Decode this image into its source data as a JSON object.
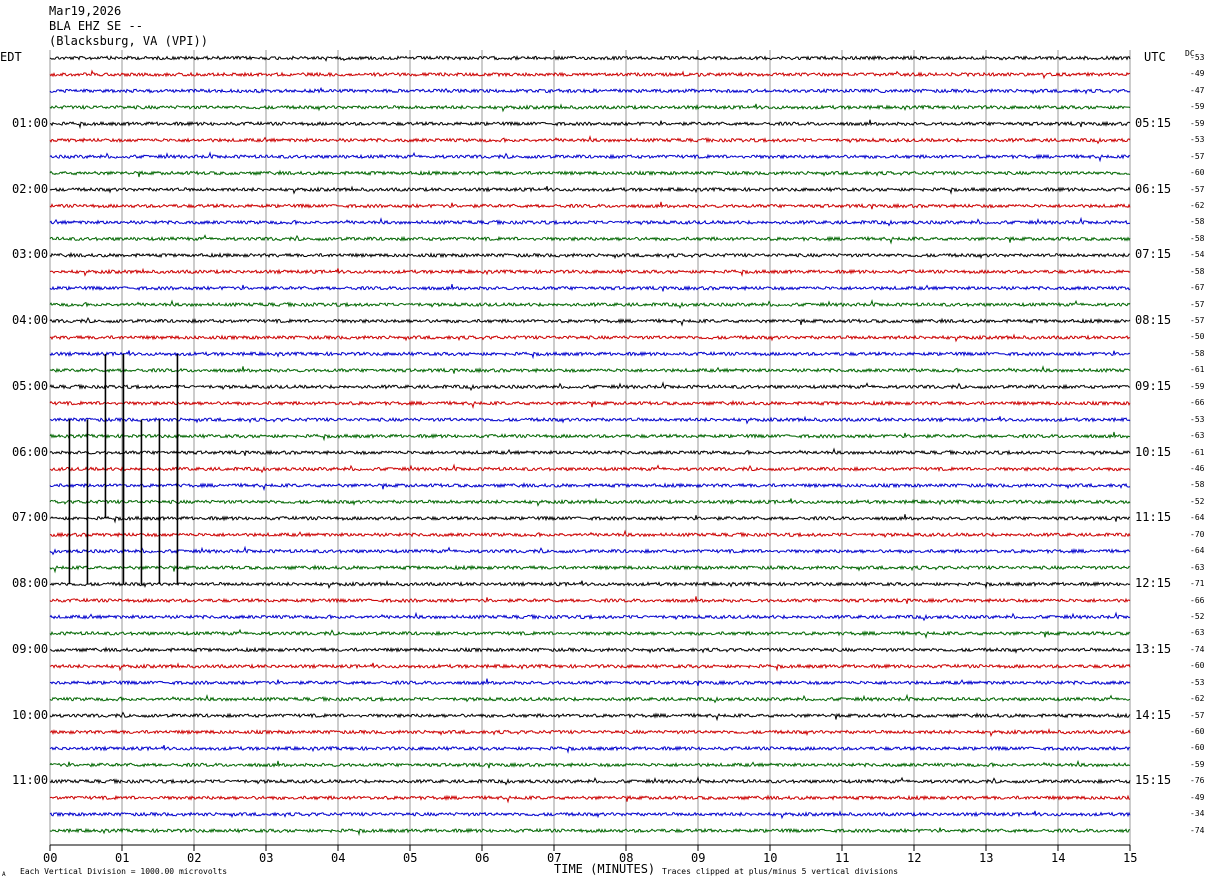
{
  "header": {
    "date": "Mar19,2026",
    "station": "BLA EHZ SE --",
    "location": "(Blacksburg, VA (VPI))"
  },
  "left_tz": "EDT",
  "right_tz": "UTC",
  "dc_label": "DC",
  "footer": {
    "scale_note": "Each Vertical Division = 1000.00 microvolts",
    "clip_note": "Traces clipped at plus/minus 5 vertical divisions",
    "corner_mark": "A"
  },
  "colors": {
    "trace_cycle": [
      "#000000",
      "#cc0000",
      "#0000cc",
      "#006600"
    ],
    "grid": "#999999"
  },
  "chart_data": {
    "type": "line",
    "xlabel": "TIME (MINUTES)",
    "xlim": [
      0,
      15
    ],
    "x_ticks": [
      "00",
      "01",
      "02",
      "03",
      "04",
      "05",
      "06",
      "07",
      "08",
      "09",
      "10",
      "11",
      "12",
      "13",
      "14",
      "15"
    ],
    "rows_per_hour": 4,
    "left_hour_labels": [
      "01:00",
      "02:00",
      "03:00",
      "04:00",
      "05:00",
      "06:00",
      "07:00",
      "08:00",
      "09:00",
      "10:00",
      "11:00"
    ],
    "right_hour_labels": [
      "05:15",
      "06:15",
      "07:15",
      "08:15",
      "09:15",
      "10:15",
      "11:15",
      "12:15",
      "13:15",
      "14:15",
      "15:15"
    ],
    "dc_offsets": [
      53,
      49,
      47,
      59,
      59,
      53,
      57,
      60,
      57,
      62,
      58,
      58,
      54,
      58,
      67,
      57,
      57,
      50,
      58,
      61,
      59,
      66,
      53,
      63,
      61,
      46,
      58,
      52,
      64,
      70,
      64,
      63,
      71,
      66,
      52,
      63,
      74,
      60,
      53,
      62,
      57,
      60,
      60,
      59,
      76,
      49,
      34,
      74
    ],
    "spikes": [
      {
        "row": 23,
        "minute": 0.77
      },
      {
        "row": 23,
        "minute": 1.02
      },
      {
        "row": 23,
        "minute": 1.77
      },
      {
        "row": 27,
        "minute": 0.27
      },
      {
        "row": 27,
        "minute": 0.52
      },
      {
        "row": 27,
        "minute": 1.02
      },
      {
        "row": 27,
        "minute": 1.27
      },
      {
        "row": 27,
        "minute": 1.52
      },
      {
        "row": 27,
        "minute": 1.77
      }
    ]
  }
}
